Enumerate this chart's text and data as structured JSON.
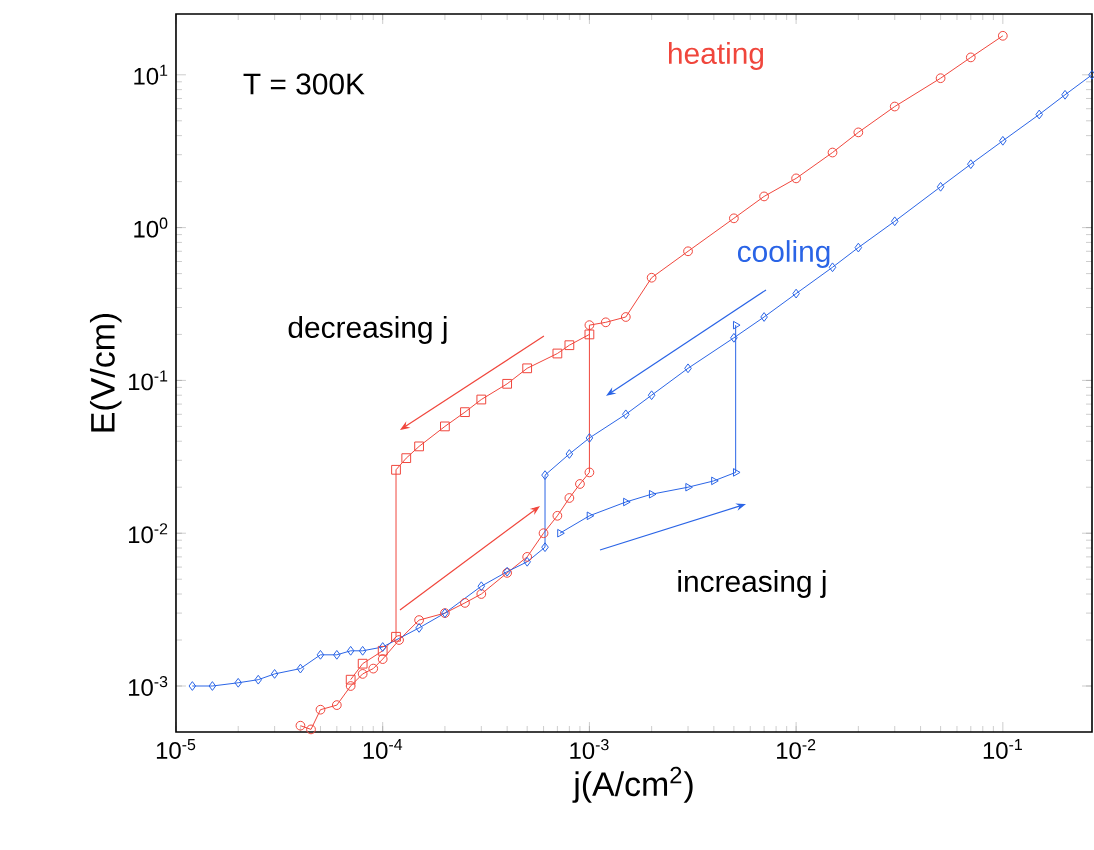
{
  "chart_data": {
    "type": "line",
    "xlabel": "j(A/cm$^{2}$)",
    "ylabel": "E(V/cm)",
    "annotations": [
      "T = 300K",
      "decreasing j",
      "increasing j"
    ],
    "log": "xy",
    "grid": false,
    "xlim": [
      1e-05,
      0.27
    ],
    "ylim": [
      0.0005,
      25
    ],
    "xticks": [
      {
        "value": 1e-05,
        "label": "10$^{-5}$"
      },
      {
        "value": 0.0001,
        "label": "10$^{-4}$"
      },
      {
        "value": 0.001,
        "label": "10$^{-3}$"
      },
      {
        "value": 0.01,
        "label": "10$^{-2}$"
      },
      {
        "value": 0.1,
        "label": "10$^{-1}$"
      }
    ],
    "yticks": [
      {
        "value": 0.001,
        "label": "10$^{-3}$"
      },
      {
        "value": 0.01,
        "label": "10$^{-2}$"
      },
      {
        "value": 0.1,
        "label": "10$^{-1}$"
      },
      {
        "value": 1,
        "label": "10$^{0}$"
      },
      {
        "value": 10,
        "label": "10$^{1}$"
      }
    ],
    "series": [
      {
        "name": "heating",
        "color": "#f0463c",
        "marker": "circle",
        "x": [
          4e-05,
          4.5e-05,
          5e-05,
          6e-05,
          7e-05,
          8e-05,
          9e-05,
          0.0001,
          0.00012,
          0.00015,
          0.0002,
          0.00025,
          0.0003,
          0.0004,
          0.0005,
          0.0006,
          0.0007,
          0.0008,
          0.0009,
          0.001,
          0.001,
          0.0012,
          0.0015,
          0.002,
          0.003,
          0.005,
          0.007,
          0.01,
          0.015,
          0.02,
          0.03,
          0.05,
          0.07,
          0.1
        ],
        "values": [
          0.00055,
          0.00052,
          0.0007,
          0.00075,
          0.001,
          0.0012,
          0.0013,
          0.0015,
          0.002,
          0.0027,
          0.003,
          0.0035,
          0.004,
          0.0055,
          0.007,
          0.01,
          0.013,
          0.017,
          0.021,
          0.025,
          0.23,
          0.24,
          0.26,
          0.47,
          0.7,
          1.15,
          1.6,
          2.1,
          3.1,
          4.2,
          6.2,
          9.5,
          13,
          18
        ]
      },
      {
        "color": "#f0463c",
        "marker": "square",
        "x": [
          0.001,
          0.0008,
          0.0007,
          0.0005,
          0.0004,
          0.0003,
          0.00025,
          0.0002,
          0.00015,
          0.00013,
          0.000116,
          0.000116,
          0.0001,
          8e-05,
          7e-05
        ],
        "values": [
          0.2,
          0.17,
          0.15,
          0.12,
          0.095,
          0.075,
          0.062,
          0.05,
          0.037,
          0.031,
          0.026,
          0.0021,
          0.0017,
          0.0014,
          0.0011
        ]
      },
      {
        "name": "cooling",
        "color": "#2a64e6",
        "marker": "diamond",
        "x": [
          0.27,
          0.2,
          0.15,
          0.1,
          0.07,
          0.05,
          0.03,
          0.02,
          0.015,
          0.01,
          0.007,
          0.005,
          0.003,
          0.002,
          0.0015,
          0.001,
          0.0008,
          0.00061,
          0.00061,
          0.0005,
          0.0004,
          0.0003,
          0.0002,
          0.00015,
          0.0001,
          8e-05,
          7e-05,
          6e-05,
          5e-05,
          4e-05,
          3e-05,
          2.5e-05,
          2e-05,
          1.5e-05,
          1.2e-05
        ],
        "values": [
          10,
          7.4,
          5.5,
          3.7,
          2.6,
          1.85,
          1.1,
          0.74,
          0.55,
          0.37,
          0.26,
          0.19,
          0.12,
          0.08,
          0.06,
          0.042,
          0.033,
          0.024,
          0.0081,
          0.0065,
          0.0056,
          0.0045,
          0.003,
          0.0024,
          0.0018,
          0.0017,
          0.0017,
          0.0016,
          0.0016,
          0.0013,
          0.0012,
          0.0011,
          0.00105,
          0.001,
          0.001
        ]
      },
      {
        "color": "#2a64e6",
        "marker": "triangle",
        "x": [
          0.00072,
          0.001,
          0.0015,
          0.002,
          0.003,
          0.004,
          0.0051,
          0.0051
        ],
        "values": [
          0.01,
          0.013,
          0.016,
          0.018,
          0.02,
          0.022,
          0.025,
          0.23
        ]
      }
    ]
  }
}
